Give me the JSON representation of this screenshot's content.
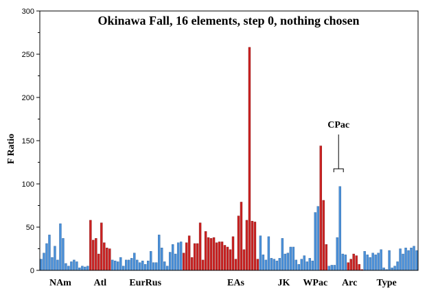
{
  "chart_data": {
    "type": "bar",
    "title": "Okinawa Fall, 16 elements, step 0, nothing chosen",
    "xlabel": "",
    "ylabel": "F Ratio",
    "ylim": [
      0,
      300
    ],
    "yticks": [
      0,
      50,
      100,
      150,
      200,
      250,
      300
    ],
    "grid": false,
    "colors": {
      "not_significant": "#4a90d9",
      "significant": "#cc2222"
    },
    "values": [
      13,
      20,
      31,
      41,
      15,
      28,
      12,
      54,
      37,
      8,
      5,
      10,
      12,
      10,
      3,
      5,
      4,
      5,
      58,
      35,
      37,
      19,
      55,
      32,
      26,
      25,
      12,
      11,
      10,
      15,
      5,
      12,
      12,
      14,
      20,
      12,
      9,
      11,
      7,
      11,
      22,
      9,
      9,
      41,
      26,
      10,
      5,
      21,
      30,
      19,
      32,
      33,
      20,
      32,
      40,
      15,
      31,
      31,
      55,
      12,
      45,
      38,
      37,
      38,
      32,
      33,
      33,
      29,
      27,
      24,
      39,
      13,
      63,
      79,
      24,
      58,
      258,
      57,
      56,
      13,
      40,
      18,
      12,
      39,
      14,
      13,
      11,
      14,
      37,
      19,
      20,
      27,
      27,
      12,
      7,
      13,
      17,
      10,
      14,
      11,
      67,
      74,
      144,
      81,
      30,
      5,
      6,
      6,
      38,
      97,
      19,
      18,
      9,
      13,
      19,
      17,
      7,
      1,
      22,
      18,
      15,
      20,
      18,
      20,
      24,
      3,
      1,
      23,
      3,
      5,
      10,
      25,
      19,
      26,
      23,
      26,
      28,
      23
    ],
    "significant": [
      0,
      0,
      0,
      0,
      0,
      0,
      0,
      0,
      0,
      0,
      0,
      0,
      0,
      0,
      0,
      0,
      0,
      0,
      1,
      1,
      1,
      1,
      1,
      1,
      1,
      1,
      0,
      0,
      0,
      0,
      0,
      0,
      0,
      0,
      0,
      0,
      0,
      0,
      0,
      0,
      0,
      0,
      0,
      0,
      0,
      0,
      0,
      0,
      0,
      0,
      0,
      0,
      1,
      1,
      1,
      1,
      1,
      1,
      1,
      1,
      1,
      1,
      1,
      1,
      1,
      1,
      1,
      1,
      1,
      1,
      1,
      1,
      1,
      1,
      1,
      1,
      1,
      1,
      1,
      1,
      0,
      0,
      0,
      0,
      0,
      0,
      0,
      0,
      0,
      0,
      0,
      0,
      0,
      0,
      0,
      0,
      0,
      0,
      0,
      0,
      0,
      0,
      1,
      1,
      1,
      0,
      0,
      0,
      0,
      0,
      0,
      0,
      1,
      1,
      1,
      1,
      1,
      1,
      0,
      0,
      0,
      0,
      0,
      0,
      0,
      0,
      0,
      0,
      0,
      0,
      0,
      0,
      0,
      0,
      0,
      0,
      0,
      0
    ],
    "group_labels": [
      {
        "label": "NAm",
        "at": 7.5
      },
      {
        "label": "Atl",
        "at": 22
      },
      {
        "label": "EurRus",
        "at": 38.5
      },
      {
        "label": "EAs",
        "at": 71.5
      },
      {
        "label": "JK",
        "at": 89
      },
      {
        "label": "WPac",
        "at": 100.5
      },
      {
        "label": "Arc",
        "at": 113
      },
      {
        "label": "Type",
        "at": 126.5
      }
    ],
    "annotations": [
      {
        "text": "CPac",
        "from_bar": 107,
        "to_bar": 110
      }
    ]
  }
}
